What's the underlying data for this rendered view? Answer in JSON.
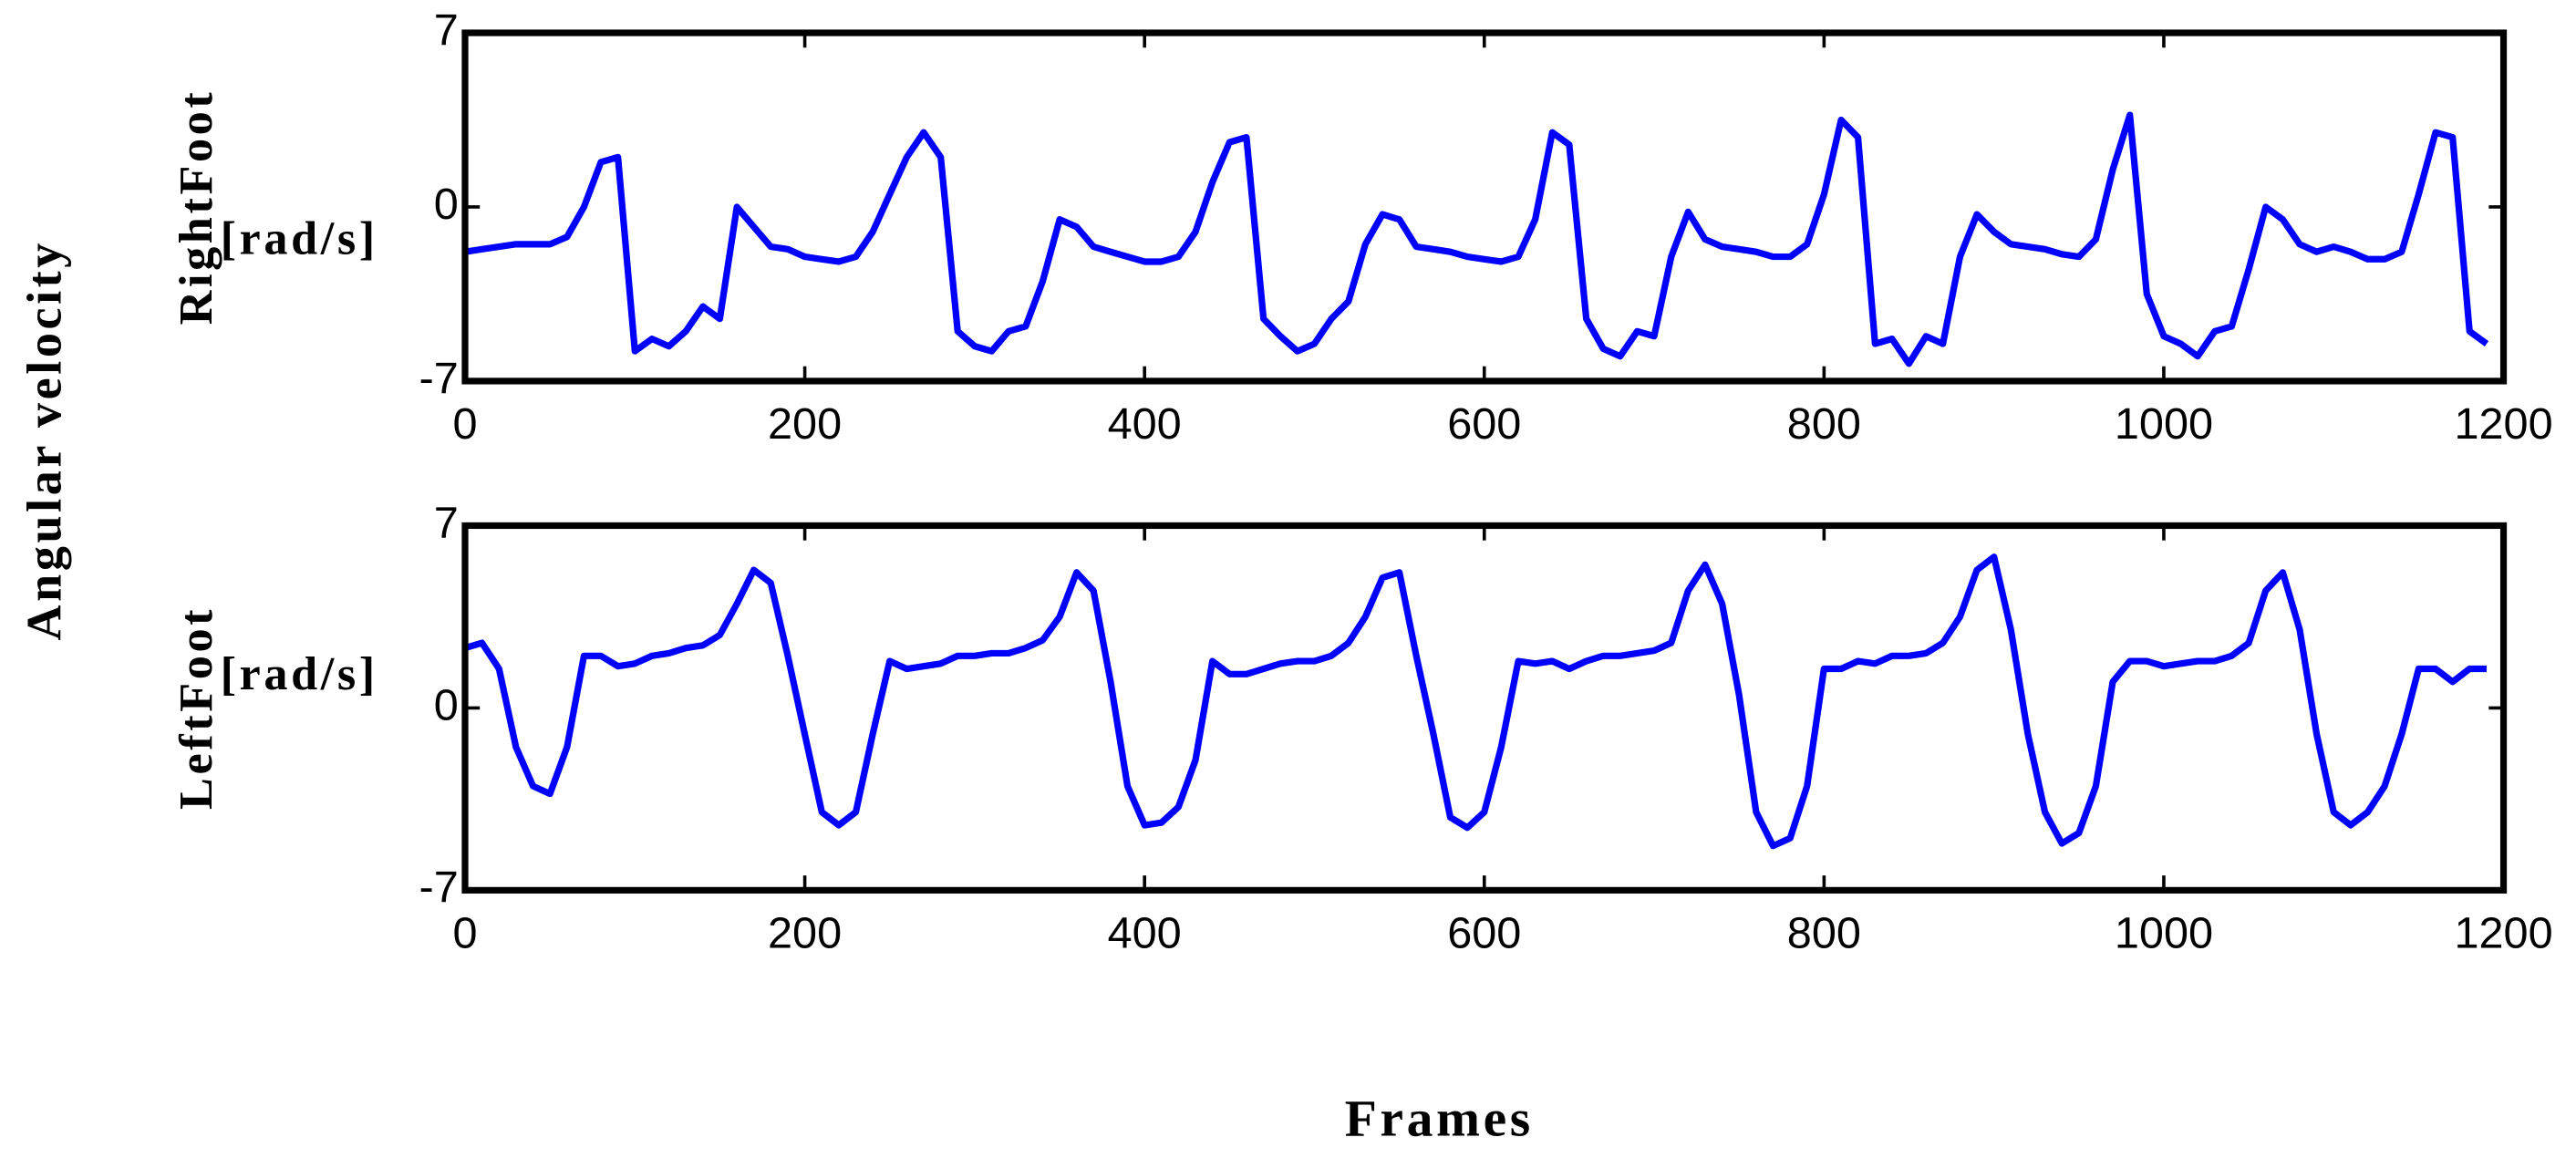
{
  "ylabel": "Angular velocity",
  "xlabel": "Frames",
  "chart_data": [
    {
      "type": "line",
      "ylabel": "RightFoot",
      "yunit": "[rad/s]",
      "xlim": [
        0,
        1200
      ],
      "xticks": [
        0,
        200,
        400,
        600,
        800,
        1000,
        1200
      ],
      "ylim": [
        -7,
        7
      ],
      "yticks": [
        -7,
        0,
        7
      ],
      "x": [
        0,
        10,
        20,
        30,
        40,
        50,
        60,
        70,
        80,
        90,
        100,
        110,
        120,
        130,
        140,
        150,
        160,
        170,
        180,
        190,
        200,
        210,
        220,
        230,
        240,
        250,
        260,
        270,
        280,
        290,
        300,
        310,
        320,
        330,
        340,
        350,
        360,
        370,
        380,
        390,
        400,
        410,
        420,
        430,
        440,
        450,
        460,
        470,
        480,
        490,
        500,
        510,
        520,
        530,
        540,
        550,
        560,
        570,
        580,
        590,
        600,
        610,
        620,
        630,
        640,
        650,
        660,
        670,
        680,
        690,
        700,
        710,
        720,
        730,
        740,
        750,
        760,
        770,
        780,
        790,
        800,
        810,
        820,
        830,
        840,
        850,
        860,
        870,
        880,
        890,
        900,
        910,
        920,
        930,
        940,
        950,
        960,
        970,
        980,
        990,
        1000,
        1010,
        1020,
        1030,
        1040,
        1050,
        1060,
        1070,
        1080,
        1090,
        1100,
        1110,
        1120,
        1130,
        1140,
        1150,
        1160,
        1170,
        1180,
        1190
      ],
      "series": [
        {
          "color": "#0000ff",
          "values": [
            -1.8,
            -1.7,
            -1.6,
            -1.5,
            -1.5,
            -1.5,
            -1.2,
            0,
            1.8,
            2,
            -5.8,
            -5.3,
            -5.6,
            -5,
            -4,
            -4.5,
            0,
            -0.8,
            -1.6,
            -1.7,
            -2,
            -2.1,
            -2.2,
            -2,
            -1,
            0.5,
            2,
            3,
            2,
            -5,
            -5.6,
            -5.8,
            -5,
            -4.8,
            -3,
            -0.5,
            -0.8,
            -1.6,
            -1.8,
            -2,
            -2.2,
            -2.2,
            -2,
            -1,
            1,
            2.6,
            2.8,
            -4.5,
            -5.2,
            -5.8,
            -5.5,
            -4.5,
            -3.8,
            -1.5,
            -0.3,
            -0.5,
            -1.6,
            -1.7,
            -1.8,
            -2,
            -2.1,
            -2.2,
            -2,
            -0.5,
            3,
            2.5,
            -4.5,
            -5.7,
            -6,
            -5,
            -5.2,
            -2,
            -0.2,
            -1.3,
            -1.6,
            -1.7,
            -1.8,
            -2,
            -2,
            -1.5,
            0.5,
            3.5,
            2.8,
            -5.5,
            -5.3,
            -6.3,
            -5.2,
            -5.5,
            -2,
            -0.3,
            -1,
            -1.5,
            -1.6,
            -1.7,
            -1.9,
            -2,
            -1.3,
            1.5,
            3.7,
            -3.5,
            -5.2,
            -5.5,
            -6,
            -5,
            -4.8,
            -2.5,
            0,
            -0.5,
            -1.5,
            -1.8,
            -1.6,
            -1.8,
            -2.1,
            -2.1,
            -1.8,
            0.5,
            3,
            2.8,
            -5,
            -5.5
          ]
        }
      ]
    },
    {
      "type": "line",
      "ylabel": "LeftFoot",
      "yunit": "[rad/s]",
      "xlim": [
        0,
        1200
      ],
      "xticks": [
        0,
        200,
        400,
        600,
        800,
        1000,
        1200
      ],
      "ylim": [
        -7,
        7
      ],
      "yticks": [
        -7,
        0,
        7
      ],
      "x": [
        0,
        10,
        20,
        30,
        40,
        50,
        60,
        70,
        80,
        90,
        100,
        110,
        120,
        130,
        140,
        150,
        160,
        170,
        180,
        190,
        200,
        210,
        220,
        230,
        240,
        250,
        260,
        270,
        280,
        290,
        300,
        310,
        320,
        330,
        340,
        350,
        360,
        370,
        380,
        390,
        400,
        410,
        420,
        430,
        440,
        450,
        460,
        470,
        480,
        490,
        500,
        510,
        520,
        530,
        540,
        550,
        560,
        570,
        580,
        590,
        600,
        610,
        620,
        630,
        640,
        650,
        660,
        670,
        680,
        690,
        700,
        710,
        720,
        730,
        740,
        750,
        760,
        770,
        780,
        790,
        800,
        810,
        820,
        830,
        840,
        850,
        860,
        870,
        880,
        890,
        900,
        910,
        920,
        930,
        940,
        950,
        960,
        970,
        980,
        990,
        1000,
        1010,
        1020,
        1030,
        1040,
        1050,
        1060,
        1070,
        1080,
        1090,
        1100,
        1110,
        1120,
        1130,
        1140,
        1150,
        1160,
        1170,
        1180,
        1190
      ],
      "series": [
        {
          "color": "#0000ff",
          "values": [
            2.3,
            2.5,
            1.5,
            -1.5,
            -3,
            -3.3,
            -1.5,
            2,
            2,
            1.6,
            1.7,
            2,
            2.1,
            2.3,
            2.4,
            2.8,
            4,
            5.3,
            4.8,
            2,
            -1,
            -4,
            -4.5,
            -4,
            -1,
            1.8,
            1.5,
            1.6,
            1.7,
            2,
            2,
            2.1,
            2.1,
            2.3,
            2.6,
            3.5,
            5.2,
            4.5,
            1,
            -3,
            -4.5,
            -4.4,
            -3.8,
            -2,
            1.8,
            1.3,
            1.3,
            1.5,
            1.7,
            1.8,
            1.8,
            2,
            2.5,
            3.5,
            5,
            5.2,
            2,
            -1,
            -4.2,
            -4.6,
            -4,
            -1.5,
            1.8,
            1.7,
            1.8,
            1.5,
            1.8,
            2,
            2,
            2.1,
            2.2,
            2.5,
            4.5,
            5.5,
            4,
            0.5,
            -4,
            -5.3,
            -5,
            -3,
            1.5,
            1.5,
            1.8,
            1.7,
            2,
            2,
            2.1,
            2.5,
            3.5,
            5.3,
            5.8,
            3,
            -1,
            -4,
            -5.2,
            -4.8,
            -3,
            1,
            1.8,
            1.8,
            1.6,
            1.7,
            1.8,
            1.8,
            2,
            2.5,
            4.5,
            5.2,
            3,
            -1,
            -4,
            -4.5,
            -4,
            -3,
            -1,
            1.5,
            1.5,
            1,
            1.5,
            1.5
          ]
        }
      ]
    }
  ]
}
